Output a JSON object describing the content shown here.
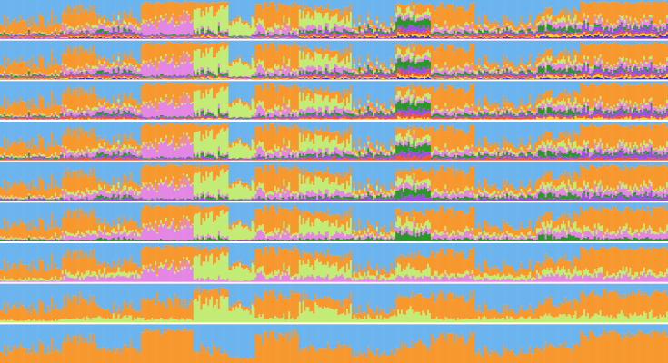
{
  "chart_data": {
    "type": "bar",
    "stacked": true,
    "normalized": true,
    "orientation": "vertical",
    "title": "",
    "xlabel": "",
    "ylabel": "",
    "ylim": [
      0,
      1
    ],
    "grid": false,
    "legend": "none",
    "n_individuals": 380,
    "palette": {
      "sky": "#6cb4ee",
      "orange": "#f7982e",
      "lime": "#c2ec75",
      "pink": "#e486e4",
      "green": "#2a962a",
      "violet": "#9a4ee2",
      "red": "#f0582a",
      "yellow": "#fbd430",
      "blue": "#2c2cd6",
      "purple": "#9a30b8"
    },
    "panels": [
      {
        "K": 2,
        "colors": [
          "#6cb4ee",
          "#f7982e"
        ]
      },
      {
        "K": 3,
        "colors": [
          "#6cb4ee",
          "#f7982e",
          "#c2ec75"
        ]
      },
      {
        "K": 4,
        "colors": [
          "#6cb4ee",
          "#f7982e",
          "#c2ec75",
          "#e486e4"
        ]
      },
      {
        "K": 5,
        "colors": [
          "#6cb4ee",
          "#f7982e",
          "#c2ec75",
          "#e486e4",
          "#2a962a"
        ]
      },
      {
        "K": 6,
        "colors": [
          "#6cb4ee",
          "#f7982e",
          "#c2ec75",
          "#e486e4",
          "#2a962a",
          "#9a4ee2"
        ]
      },
      {
        "K": 7,
        "colors": [
          "#6cb4ee",
          "#f7982e",
          "#c2ec75",
          "#e486e4",
          "#2a962a",
          "#9a4ee2",
          "#f0582a"
        ]
      },
      {
        "K": 8,
        "colors": [
          "#6cb4ee",
          "#f7982e",
          "#c2ec75",
          "#e486e4",
          "#2a962a",
          "#9a4ee2",
          "#f0582a",
          "#fbd430"
        ]
      },
      {
        "K": 9,
        "colors": [
          "#6cb4ee",
          "#f7982e",
          "#c2ec75",
          "#e486e4",
          "#2a962a",
          "#9a4ee2",
          "#f0582a",
          "#fbd430",
          "#2c2cd6"
        ]
      },
      {
        "K": 10,
        "colors": [
          "#6cb4ee",
          "#f7982e",
          "#c2ec75",
          "#e486e4",
          "#2a962a",
          "#9a4ee2",
          "#f0582a",
          "#fbd430",
          "#2c2cd6",
          "#9a30b8"
        ]
      }
    ],
    "populations": [
      {
        "n": 35,
        "profile": [
          0.55,
          0.3,
          0.02,
          0.02,
          0.03,
          0.02,
          0.03,
          0.01,
          0.01,
          0.01
        ]
      },
      {
        "n": 20,
        "profile": [
          0.2,
          0.5,
          0.05,
          0.1,
          0.02,
          0.03,
          0.05,
          0.02,
          0.02,
          0.01
        ]
      },
      {
        "n": 25,
        "profile": [
          0.45,
          0.15,
          0.05,
          0.15,
          0.05,
          0.05,
          0.05,
          0.02,
          0.02,
          0.01
        ]
      },
      {
        "n": 30,
        "profile": [
          0.05,
          0.45,
          0.05,
          0.35,
          0.02,
          0.03,
          0.02,
          0.01,
          0.01,
          0.01
        ]
      },
      {
        "n": 20,
        "profile": [
          0.05,
          0.3,
          0.45,
          0.05,
          0.05,
          0.03,
          0.03,
          0.02,
          0.01,
          0.01
        ]
      },
      {
        "n": 15,
        "profile": [
          0.5,
          0.1,
          0.3,
          0.03,
          0.02,
          0.02,
          0.01,
          0.01,
          0.005,
          0.005
        ]
      },
      {
        "n": 25,
        "profile": [
          0.1,
          0.55,
          0.1,
          0.15,
          0.03,
          0.03,
          0.02,
          0.01,
          0.005,
          0.005
        ]
      },
      {
        "n": 30,
        "profile": [
          0.2,
          0.2,
          0.3,
          0.1,
          0.05,
          0.05,
          0.05,
          0.02,
          0.02,
          0.01
        ]
      },
      {
        "n": 25,
        "profile": [
          0.6,
          0.1,
          0.05,
          0.05,
          0.05,
          0.05,
          0.05,
          0.02,
          0.02,
          0.01
        ]
      },
      {
        "n": 20,
        "profile": [
          0.1,
          0.2,
          0.1,
          0.1,
          0.2,
          0.1,
          0.1,
          0.05,
          0.03,
          0.02
        ]
      },
      {
        "n": 25,
        "profile": [
          0.15,
          0.55,
          0.05,
          0.1,
          0.05,
          0.03,
          0.03,
          0.02,
          0.01,
          0.01
        ]
      },
      {
        "n": 35,
        "profile": [
          0.55,
          0.15,
          0.05,
          0.05,
          0.05,
          0.05,
          0.05,
          0.02,
          0.02,
          0.01
        ]
      },
      {
        "n": 25,
        "profile": [
          0.3,
          0.2,
          0.1,
          0.1,
          0.1,
          0.05,
          0.05,
          0.05,
          0.03,
          0.02
        ]
      },
      {
        "n": 50,
        "profile": [
          0.05,
          0.5,
          0.05,
          0.1,
          0.05,
          0.1,
          0.05,
          0.04,
          0.03,
          0.03
        ]
      }
    ]
  }
}
